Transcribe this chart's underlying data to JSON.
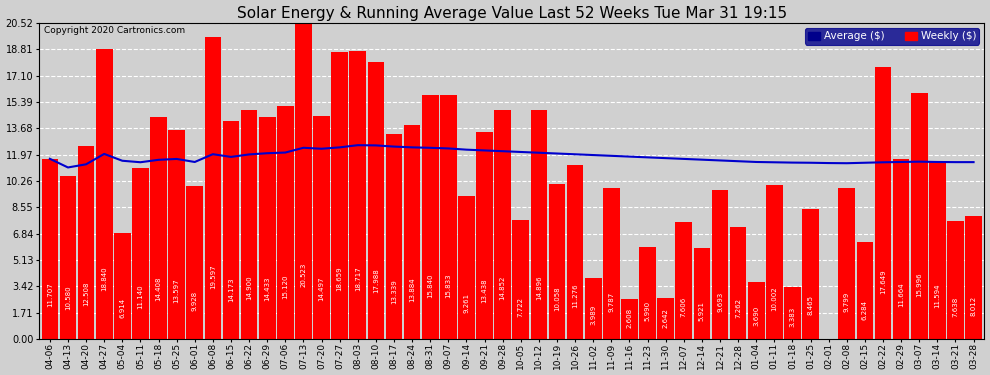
{
  "title": "Solar Energy & Running Average Value Last 52 Weeks Tue Mar 31 19:15",
  "copyright": "Copyright 2020 Cartronics.com",
  "bar_color": "#ff0000",
  "avg_line_color": "#0000cd",
  "background_color": "#d0d0d0",
  "plot_bg_color": "#d0d0d0",
  "grid_color": "#ffffff",
  "yticks": [
    0.0,
    1.71,
    3.42,
    5.13,
    6.84,
    8.55,
    10.26,
    11.97,
    13.68,
    15.39,
    17.1,
    18.81,
    20.52
  ],
  "legend_avg_color": "#00008b",
  "legend_weekly_color": "#ff0000",
  "categories": [
    "04-06",
    "04-13",
    "04-20",
    "04-27",
    "05-04",
    "05-11",
    "05-18",
    "05-25",
    "06-01",
    "06-08",
    "06-15",
    "06-22",
    "06-29",
    "07-06",
    "07-13",
    "07-20",
    "07-27",
    "08-03",
    "08-10",
    "08-17",
    "08-24",
    "08-31",
    "09-07",
    "09-14",
    "09-21",
    "09-28",
    "10-05",
    "10-12",
    "10-19",
    "10-26",
    "11-02",
    "11-09",
    "11-16",
    "11-23",
    "11-30",
    "12-07",
    "12-14",
    "12-21",
    "12-28",
    "01-04",
    "01-11",
    "01-18",
    "01-25",
    "02-01",
    "02-08",
    "02-15",
    "02-22",
    "02-29",
    "03-07",
    "03-14",
    "03-21",
    "03-28"
  ],
  "weekly_values": [
    11.707,
    10.58,
    12.508,
    18.84,
    6.914,
    11.14,
    14.408,
    13.597,
    9.928,
    19.597,
    14.173,
    14.9,
    14.433,
    15.12,
    20.523,
    14.497,
    18.659,
    18.717,
    17.988,
    13.339,
    13.884,
    15.84,
    15.833,
    9.261,
    13.438,
    14.852,
    7.722,
    14.896,
    10.058,
    11.276,
    3.989,
    9.787,
    2.608,
    5.99,
    2.642,
    7.606,
    5.921,
    9.693,
    7.262,
    3.69,
    10.002,
    3.383,
    8.465,
    0.008,
    9.799,
    6.284,
    17.649,
    11.664,
    15.996,
    11.594,
    7.638,
    8.012
  ],
  "avg_values": [
    11.707,
    11.144,
    11.349,
    12.024,
    11.58,
    11.483,
    11.64,
    11.697,
    11.5,
    12.006,
    11.829,
    11.99,
    12.069,
    12.113,
    12.422,
    12.36,
    12.449,
    12.591,
    12.577,
    12.5,
    12.45,
    12.42,
    12.38,
    12.3,
    12.25,
    12.2,
    12.15,
    12.1,
    12.05,
    12.0,
    11.95,
    11.9,
    11.85,
    11.8,
    11.75,
    11.7,
    11.65,
    11.6,
    11.55,
    11.5,
    11.48,
    11.46,
    11.45,
    11.43,
    11.42,
    11.45,
    11.48,
    11.5,
    11.52,
    11.5,
    11.49,
    11.49
  ],
  "label_fontsize": 5.0,
  "tick_fontsize": 7.0,
  "xtick_fontsize": 6.5,
  "title_fontsize": 11
}
